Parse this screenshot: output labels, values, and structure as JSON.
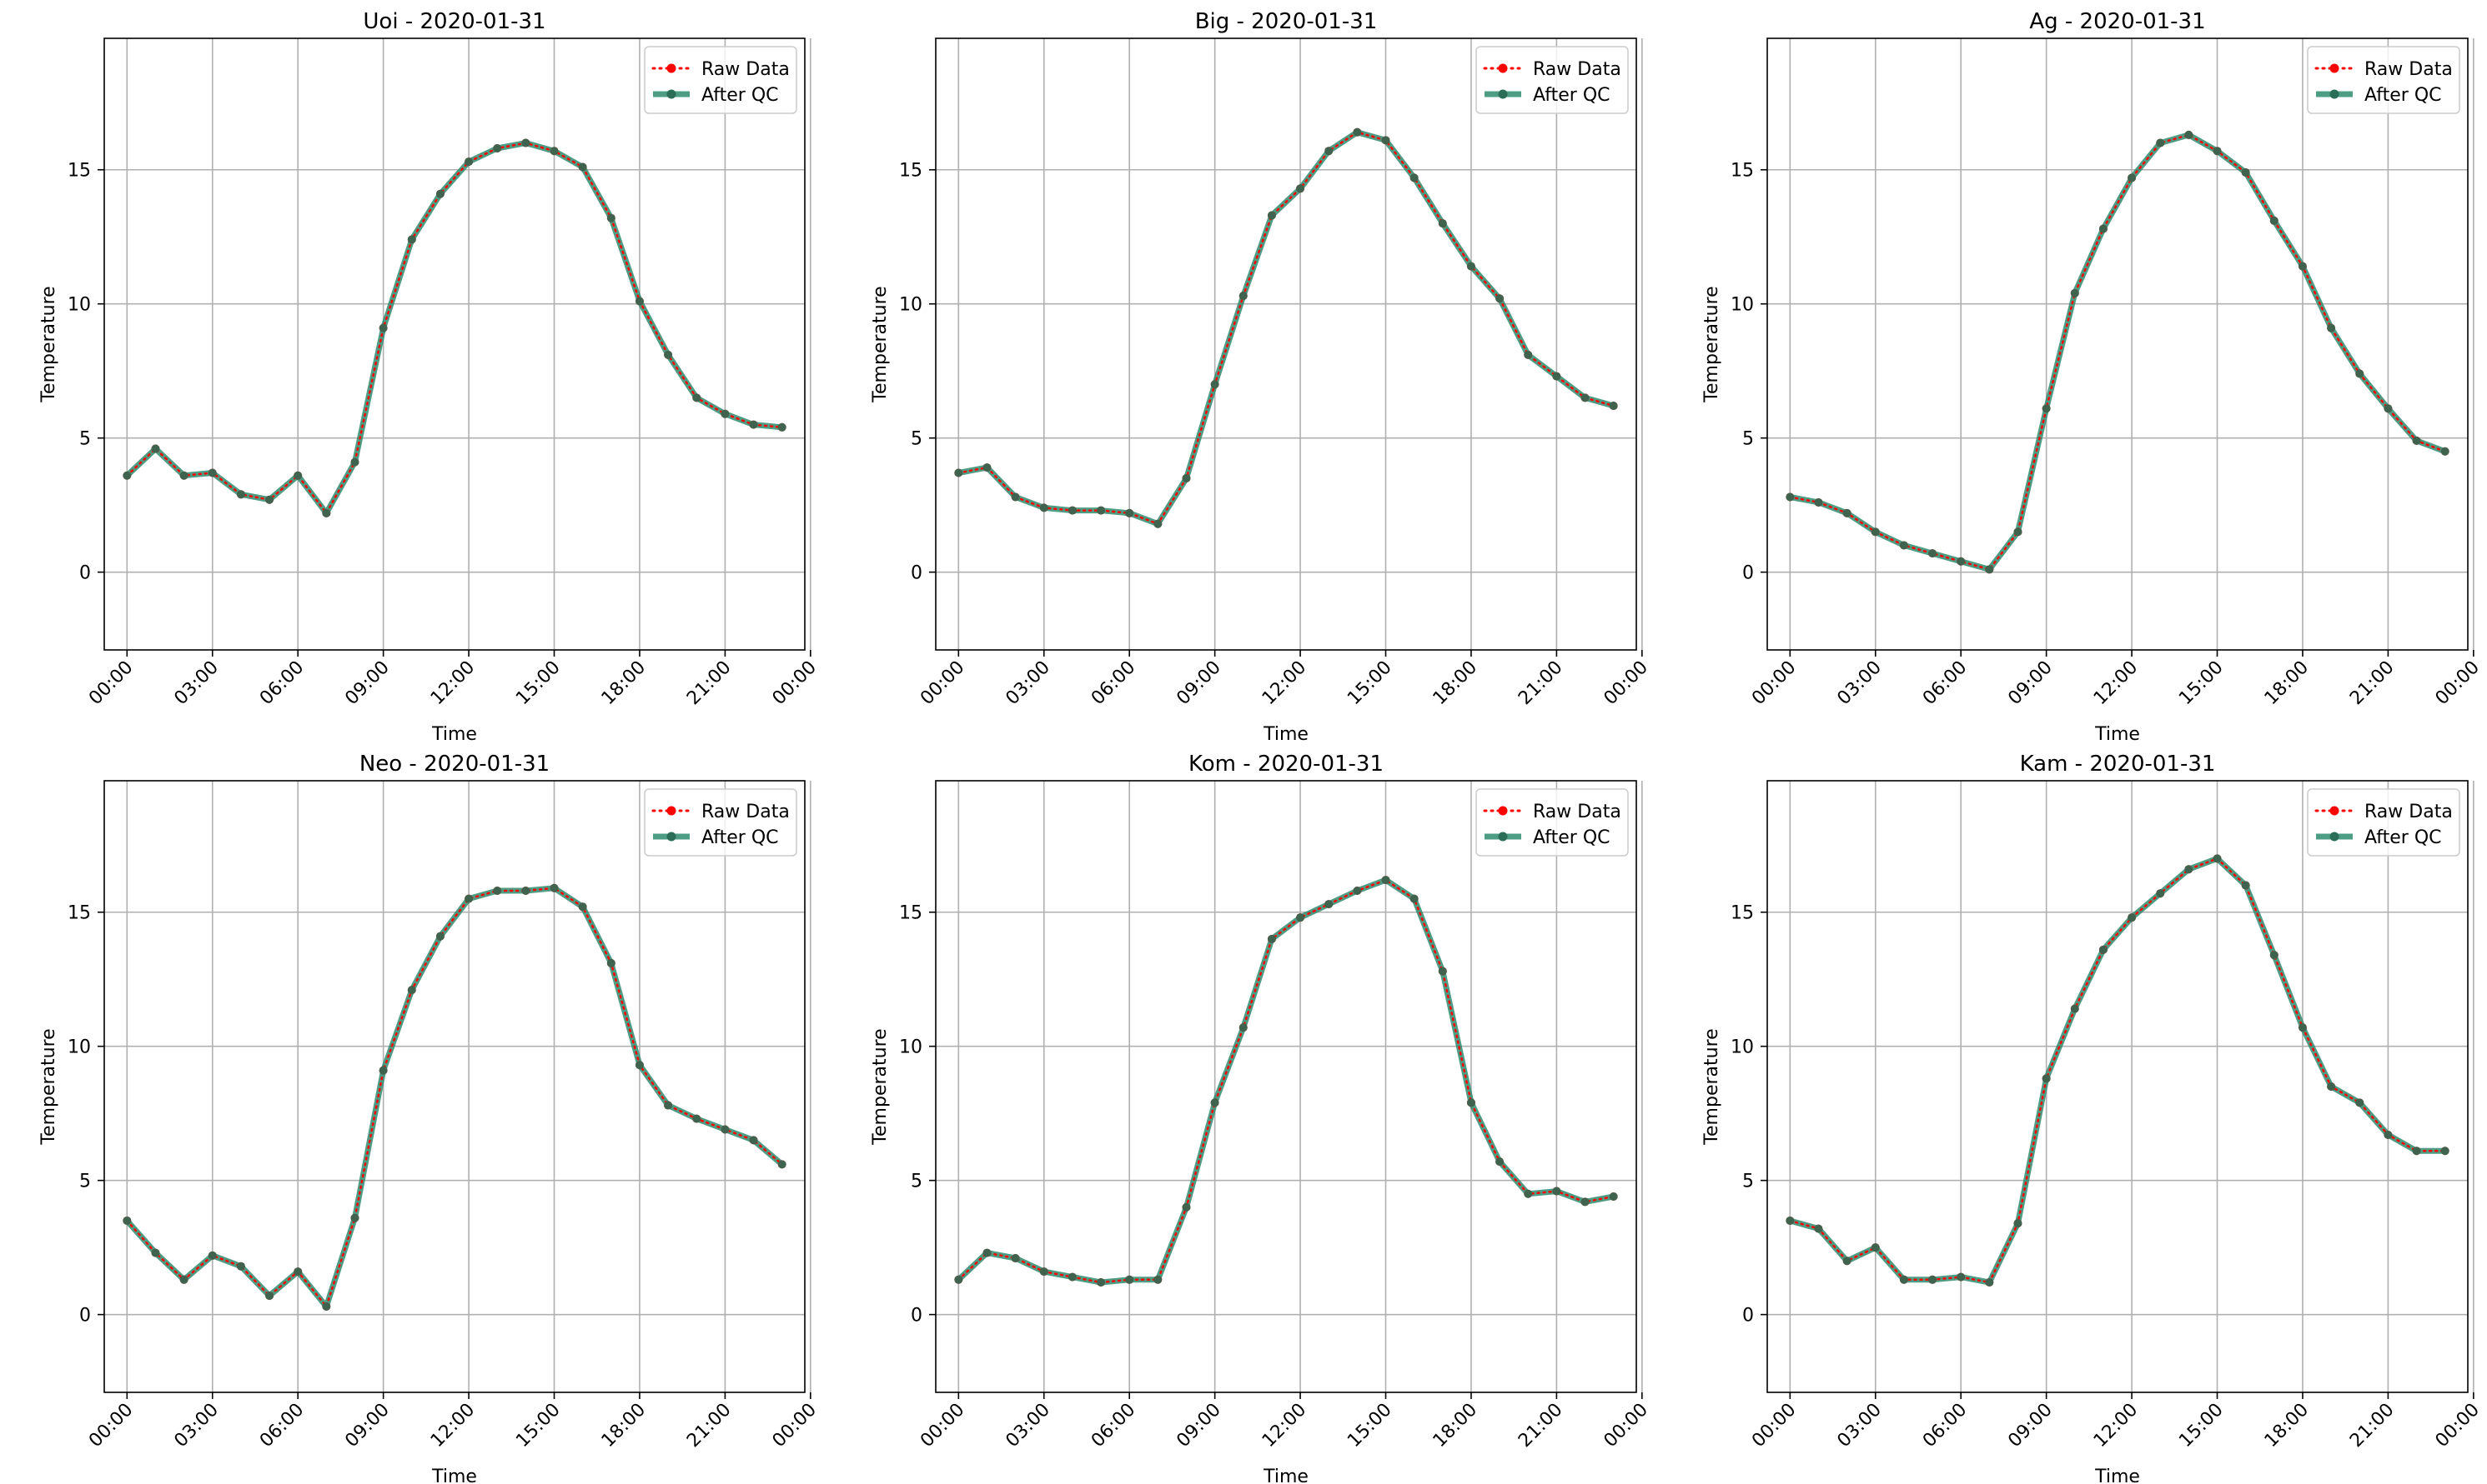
{
  "chart_data": [
    {
      "type": "line",
      "title": "Uoi - 2020-01-31",
      "xlabel": "Time",
      "ylabel": "Temperature",
      "ylim": [
        -2.9,
        19.9
      ],
      "xlim": [
        -0.8,
        23.8
      ],
      "yticks": [
        0,
        5,
        10,
        15
      ],
      "xticks": [
        0,
        3,
        6,
        9,
        12,
        15,
        18,
        21,
        24
      ],
      "xtick_labels": [
        "00:00",
        "03:00",
        "06:00",
        "09:00",
        "12:00",
        "15:00",
        "18:00",
        "21:00",
        "00:00"
      ],
      "grid": true,
      "legend_position": "top-right",
      "x": [
        0,
        1,
        2,
        3,
        4,
        5,
        6,
        7,
        8,
        9,
        10,
        11,
        12,
        13,
        14,
        15,
        16,
        17,
        18,
        19,
        20,
        21,
        22,
        23
      ],
      "series": [
        {
          "name": "Raw Data",
          "color": "#ff0000",
          "values": [
            3.6,
            4.6,
            3.6,
            3.7,
            2.9,
            2.7,
            3.6,
            2.2,
            4.1,
            9.1,
            12.4,
            14.1,
            15.3,
            15.8,
            16.0,
            15.7,
            15.1,
            13.2,
            10.1,
            8.1,
            6.5,
            5.9,
            5.5,
            5.4
          ]
        },
        {
          "name": "After QC",
          "color": "#2e8b6e",
          "values": [
            3.6,
            4.6,
            3.6,
            3.7,
            2.9,
            2.7,
            3.6,
            2.2,
            4.1,
            9.1,
            12.4,
            14.1,
            15.3,
            15.8,
            16.0,
            15.7,
            15.1,
            13.2,
            10.1,
            8.1,
            6.5,
            5.9,
            5.5,
            5.4
          ]
        }
      ]
    },
    {
      "type": "line",
      "title": "Big - 2020-01-31",
      "xlabel": "Time",
      "ylabel": "Temperature",
      "ylim": [
        -2.9,
        19.9
      ],
      "xlim": [
        -0.8,
        23.8
      ],
      "yticks": [
        0,
        5,
        10,
        15
      ],
      "xticks": [
        0,
        3,
        6,
        9,
        12,
        15,
        18,
        21,
        24
      ],
      "xtick_labels": [
        "00:00",
        "03:00",
        "06:00",
        "09:00",
        "12:00",
        "15:00",
        "18:00",
        "21:00",
        "00:00"
      ],
      "grid": true,
      "legend_position": "top-right",
      "x": [
        0,
        1,
        2,
        3,
        4,
        5,
        6,
        7,
        8,
        9,
        10,
        11,
        12,
        13,
        14,
        15,
        16,
        17,
        18,
        19,
        20,
        21,
        22,
        23
      ],
      "series": [
        {
          "name": "Raw Data",
          "color": "#ff0000",
          "values": [
            3.7,
            3.9,
            2.8,
            2.4,
            2.3,
            2.3,
            2.2,
            1.8,
            3.5,
            7.0,
            10.3,
            13.3,
            14.3,
            15.7,
            16.4,
            16.1,
            14.7,
            13.0,
            11.4,
            10.2,
            8.1,
            7.3,
            6.5,
            6.2
          ]
        },
        {
          "name": "After QC",
          "color": "#2e8b6e",
          "values": [
            3.7,
            3.9,
            2.8,
            2.4,
            2.3,
            2.3,
            2.2,
            1.8,
            3.5,
            7.0,
            10.3,
            13.3,
            14.3,
            15.7,
            16.4,
            16.1,
            14.7,
            13.0,
            11.4,
            10.2,
            8.1,
            7.3,
            6.5,
            6.2
          ]
        }
      ]
    },
    {
      "type": "line",
      "title": "Ag - 2020-01-31",
      "xlabel": "Time",
      "ylabel": "Temperature",
      "ylim": [
        -2.9,
        19.9
      ],
      "xlim": [
        -0.8,
        23.8
      ],
      "yticks": [
        0,
        5,
        10,
        15
      ],
      "xticks": [
        0,
        3,
        6,
        9,
        12,
        15,
        18,
        21,
        24
      ],
      "xtick_labels": [
        "00:00",
        "03:00",
        "06:00",
        "09:00",
        "12:00",
        "15:00",
        "18:00",
        "21:00",
        "00:00"
      ],
      "grid": true,
      "legend_position": "top-right",
      "x": [
        0,
        1,
        2,
        3,
        4,
        5,
        6,
        7,
        8,
        9,
        10,
        11,
        12,
        13,
        14,
        15,
        16,
        17,
        18,
        19,
        20,
        21,
        22,
        23
      ],
      "series": [
        {
          "name": "Raw Data",
          "color": "#ff0000",
          "values": [
            2.8,
            2.6,
            2.2,
            1.5,
            1.0,
            0.7,
            0.4,
            0.1,
            1.5,
            6.1,
            10.4,
            12.8,
            14.7,
            16.0,
            16.3,
            15.7,
            14.9,
            13.1,
            11.4,
            9.1,
            7.4,
            6.1,
            4.9,
            4.5
          ]
        },
        {
          "name": "After QC",
          "color": "#2e8b6e",
          "values": [
            2.8,
            2.6,
            2.2,
            1.5,
            1.0,
            0.7,
            0.4,
            0.1,
            1.5,
            6.1,
            10.4,
            12.8,
            14.7,
            16.0,
            16.3,
            15.7,
            14.9,
            13.1,
            11.4,
            9.1,
            7.4,
            6.1,
            4.9,
            4.5
          ]
        }
      ]
    },
    {
      "type": "line",
      "title": "Neo - 2020-01-31",
      "xlabel": "Time",
      "ylabel": "Temperature",
      "ylim": [
        -2.9,
        19.9
      ],
      "xlim": [
        -0.8,
        23.8
      ],
      "yticks": [
        0,
        5,
        10,
        15
      ],
      "xticks": [
        0,
        3,
        6,
        9,
        12,
        15,
        18,
        21,
        24
      ],
      "xtick_labels": [
        "00:00",
        "03:00",
        "06:00",
        "09:00",
        "12:00",
        "15:00",
        "18:00",
        "21:00",
        "00:00"
      ],
      "grid": true,
      "legend_position": "top-right",
      "x": [
        0,
        1,
        2,
        3,
        4,
        5,
        6,
        7,
        8,
        9,
        10,
        11,
        12,
        13,
        14,
        15,
        16,
        17,
        18,
        19,
        20,
        21,
        22,
        23
      ],
      "series": [
        {
          "name": "Raw Data",
          "color": "#ff0000",
          "values": [
            3.5,
            2.3,
            1.3,
            2.2,
            1.8,
            0.7,
            1.6,
            0.3,
            3.6,
            9.1,
            12.1,
            14.1,
            15.5,
            15.8,
            15.8,
            15.9,
            15.2,
            13.1,
            9.3,
            7.8,
            7.3,
            6.9,
            6.5,
            5.6
          ]
        },
        {
          "name": "After QC",
          "color": "#2e8b6e",
          "values": [
            3.5,
            2.3,
            1.3,
            2.2,
            1.8,
            0.7,
            1.6,
            0.3,
            3.6,
            9.1,
            12.1,
            14.1,
            15.5,
            15.8,
            15.8,
            15.9,
            15.2,
            13.1,
            9.3,
            7.8,
            7.3,
            6.9,
            6.5,
            5.6
          ]
        }
      ]
    },
    {
      "type": "line",
      "title": "Kom - 2020-01-31",
      "xlabel": "Time",
      "ylabel": "Temperature",
      "ylim": [
        -2.9,
        19.9
      ],
      "xlim": [
        -0.8,
        23.8
      ],
      "yticks": [
        0,
        5,
        10,
        15
      ],
      "xticks": [
        0,
        3,
        6,
        9,
        12,
        15,
        18,
        21,
        24
      ],
      "xtick_labels": [
        "00:00",
        "03:00",
        "06:00",
        "09:00",
        "12:00",
        "15:00",
        "18:00",
        "21:00",
        "00:00"
      ],
      "grid": true,
      "legend_position": "top-right",
      "x": [
        0,
        1,
        2,
        3,
        4,
        5,
        6,
        7,
        8,
        9,
        10,
        11,
        12,
        13,
        14,
        15,
        16,
        17,
        18,
        19,
        20,
        21,
        22,
        23
      ],
      "series": [
        {
          "name": "Raw Data",
          "color": "#ff0000",
          "values": [
            1.3,
            2.3,
            2.1,
            1.6,
            1.4,
            1.2,
            1.3,
            1.3,
            4.0,
            7.9,
            10.7,
            14.0,
            14.8,
            15.3,
            15.8,
            16.2,
            15.5,
            12.8,
            7.9,
            5.7,
            4.5,
            4.6,
            4.2,
            4.4
          ]
        },
        {
          "name": "After QC",
          "color": "#2e8b6e",
          "values": [
            1.3,
            2.3,
            2.1,
            1.6,
            1.4,
            1.2,
            1.3,
            1.3,
            4.0,
            7.9,
            10.7,
            14.0,
            14.8,
            15.3,
            15.8,
            16.2,
            15.5,
            12.8,
            7.9,
            5.7,
            4.5,
            4.6,
            4.2,
            4.4
          ]
        }
      ]
    },
    {
      "type": "line",
      "title": "Kam - 2020-01-31",
      "xlabel": "Time",
      "ylabel": "Temperature",
      "ylim": [
        -2.9,
        19.9
      ],
      "xlim": [
        -0.8,
        23.8
      ],
      "yticks": [
        0,
        5,
        10,
        15
      ],
      "xticks": [
        0,
        3,
        6,
        9,
        12,
        15,
        18,
        21,
        24
      ],
      "xtick_labels": [
        "00:00",
        "03:00",
        "06:00",
        "09:00",
        "12:00",
        "15:00",
        "18:00",
        "21:00",
        "00:00"
      ],
      "grid": true,
      "legend_position": "top-right",
      "x": [
        0,
        1,
        2,
        3,
        4,
        5,
        6,
        7,
        8,
        9,
        10,
        11,
        12,
        13,
        14,
        15,
        16,
        17,
        18,
        19,
        20,
        21,
        22,
        23
      ],
      "series": [
        {
          "name": "Raw Data",
          "color": "#ff0000",
          "values": [
            3.5,
            3.2,
            2.0,
            2.5,
            1.3,
            1.3,
            1.4,
            1.2,
            3.4,
            8.8,
            11.4,
            13.6,
            14.8,
            15.7,
            16.6,
            17.0,
            16.0,
            13.4,
            10.7,
            8.5,
            7.9,
            6.7,
            6.1,
            6.1
          ]
        },
        {
          "name": "After QC",
          "color": "#2e8b6e",
          "values": [
            3.5,
            3.2,
            2.0,
            2.5,
            1.3,
            1.3,
            1.4,
            1.2,
            3.4,
            8.8,
            11.4,
            13.6,
            14.8,
            15.7,
            16.6,
            17.0,
            16.0,
            13.4,
            10.7,
            8.5,
            7.9,
            6.7,
            6.1,
            6.1
          ]
        }
      ]
    }
  ]
}
